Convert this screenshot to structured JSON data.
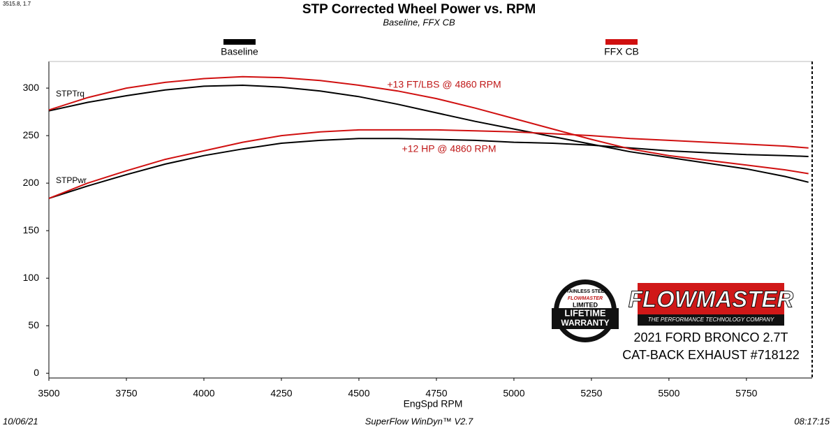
{
  "chart_data": {
    "type": "line",
    "title": "STP Corrected Wheel Power vs. RPM",
    "subtitle": "Baseline, FFX CB",
    "corner_note": "3515.8, 1.7",
    "x_label": "EngSpd  RPM",
    "x": [
      3500,
      3625,
      3750,
      3875,
      4000,
      4125,
      4250,
      4375,
      4500,
      4625,
      4750,
      4875,
      5000,
      5125,
      5250,
      5375,
      5500,
      5625,
      5750,
      5875,
      5950
    ],
    "curve_labels": [
      "STPTrq",
      "STPPwr"
    ],
    "series": [
      {
        "name": "Baseline",
        "color": "#000000",
        "values": [
          [
            276,
            285,
            292,
            298,
            302,
            303,
            301,
            297,
            291,
            283,
            274,
            265,
            257,
            249,
            241,
            233,
            227,
            221,
            215,
            207,
            201
          ],
          [
            184,
            197,
            209,
            220,
            229,
            236,
            242,
            245,
            247,
            247,
            246,
            245,
            243,
            242,
            240,
            237,
            234,
            232,
            230,
            229,
            228
          ]
        ]
      },
      {
        "name": "FFX CB",
        "color": "#d01010",
        "values": [
          [
            277,
            290,
            300,
            306,
            310,
            312,
            311,
            308,
            303,
            297,
            289,
            279,
            268,
            257,
            246,
            236,
            229,
            224,
            219,
            214,
            210
          ],
          [
            184,
            200,
            213,
            225,
            234,
            243,
            250,
            254,
            256,
            256,
            256,
            255,
            254,
            252,
            250,
            247,
            245,
            243,
            241,
            239,
            237
          ]
        ]
      }
    ],
    "annotations": [
      "+13 FT/LBS @ 4860 RPM",
      "+12 HP @ 4860 RPM"
    ],
    "annotation_color": "#c01818",
    "xlim": [
      3500,
      5962
    ],
    "ylim": [
      -5,
      328
    ],
    "xticks": [
      3500,
      3750,
      4000,
      4250,
      4500,
      4750,
      5000,
      5250,
      5500,
      5750
    ],
    "yticks": [
      0,
      50,
      100,
      150,
      200,
      250,
      300
    ],
    "grid": false,
    "legend": "top",
    "footer": {
      "date": "10/06/21",
      "software": "SuperFlow WinDyn™  V2.7",
      "time": "08:17:15"
    }
  },
  "branding": {
    "logo": "FLOWMASTER",
    "tagline": "THE PERFORMANCE TECHNOLOGY COMPANY",
    "badge": [
      "STAINLESS STEEL",
      "FLOWMASTER",
      "LIMITED",
      "LIFETIME",
      "WARRANTY"
    ],
    "vehicle": [
      "2021 FORD BRONCO 2.7T",
      "CAT-BACK EXHAUST #718122"
    ]
  }
}
